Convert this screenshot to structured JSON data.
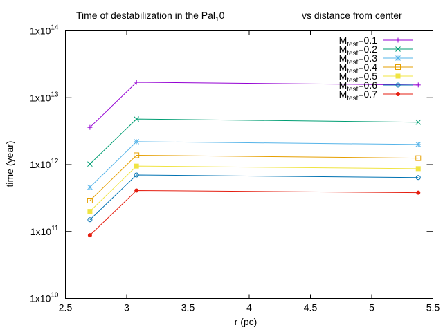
{
  "chart_data": {
    "type": "line",
    "title": {
      "main": "Time of destabilization in the Pal",
      "main_sub": "1",
      "main_tail": "0",
      "right": "vs distance from center"
    },
    "xlabel": "r (pc)",
    "ylabel": "time (year)",
    "xlim": [
      2.5,
      5.5
    ],
    "ylim": [
      10000000000.0,
      100000000000000.0
    ],
    "y_scale": "log",
    "x_ticks": [
      "2.5",
      "3",
      "3.5",
      "4",
      "4.5",
      "5",
      "5.5"
    ],
    "y_ticks": [
      {
        "base": "1x10",
        "exp": "10"
      },
      {
        "base": "1x10",
        "exp": "11"
      },
      {
        "base": "1x10",
        "exp": "12"
      },
      {
        "base": "1x10",
        "exp": "13"
      },
      {
        "base": "1x10",
        "exp": "14"
      }
    ],
    "grid": false,
    "legend_position": "top-right",
    "x": [
      2.7,
      3.08,
      5.38
    ],
    "series": [
      {
        "name": "M",
        "name_sub": "test",
        "name_tail": "=0.1",
        "color": "#9400D3",
        "marker": "plus",
        "values": [
          3600000000000.0,
          17000000000000.0,
          15500000000000.0
        ]
      },
      {
        "name": "M",
        "name_sub": "test",
        "name_tail": "=0.2",
        "color": "#009E73",
        "marker": "cross",
        "values": [
          1020000000000.0,
          4800000000000.0,
          4300000000000.0
        ]
      },
      {
        "name": "M",
        "name_sub": "test",
        "name_tail": "=0.3",
        "color": "#56B4E9",
        "marker": "star",
        "values": [
          460000000000.0,
          2200000000000.0,
          2000000000000.0
        ]
      },
      {
        "name": "M",
        "name_sub": "test",
        "name_tail": "=0.4",
        "color": "#E69F00",
        "marker": "open-square",
        "values": [
          290000000000.0,
          1380000000000.0,
          1250000000000.0
        ]
      },
      {
        "name": "M",
        "name_sub": "test",
        "name_tail": "=0.5",
        "color": "#F0E442",
        "marker": "filled-square",
        "values": [
          200000000000.0,
          950000000000.0,
          870000000000.0
        ]
      },
      {
        "name": "M",
        "name_sub": "test",
        "name_tail": "=0.6",
        "color": "#0072B2",
        "marker": "open-circle",
        "values": [
          150000000000.0,
          700000000000.0,
          640000000000.0
        ]
      },
      {
        "name": "M",
        "name_sub": "test",
        "name_tail": "=0.7",
        "color": "#E51E10",
        "marker": "filled-circle",
        "values": [
          88000000000.0,
          410000000000.0,
          380000000000.0
        ]
      }
    ]
  }
}
